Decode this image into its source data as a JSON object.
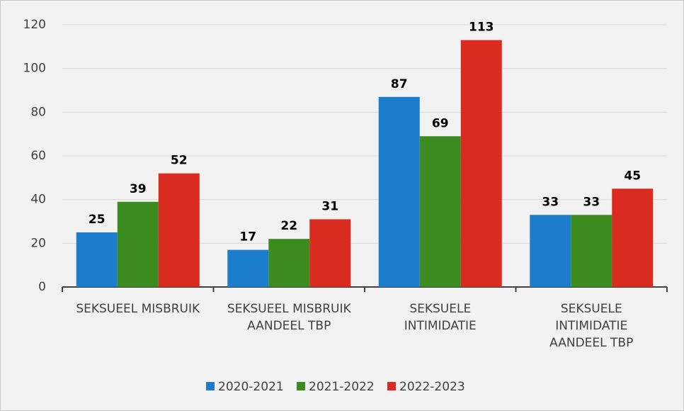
{
  "chart_data": {
    "type": "bar",
    "categories": [
      "SEKSUEEL MISBRUIK",
      "SEKSUEEL MISBRUIK\nAANDEEL TBP",
      "SEKSUELE\nINTIMIDATIE",
      "SEKSUELE\nINTIMIDATIE\nAANDEEL TBP"
    ],
    "series": [
      {
        "name": "2020-2021",
        "color": "#1c7dcc",
        "values": [
          25,
          17,
          87,
          33
        ]
      },
      {
        "name": "2021-2022",
        "color": "#3b8b1f",
        "values": [
          39,
          22,
          69,
          33
        ]
      },
      {
        "name": "2022-2023",
        "color": "#d92b1f",
        "values": [
          52,
          31,
          113,
          45
        ]
      }
    ],
    "ylim": [
      0,
      120
    ],
    "yticks": [
      0,
      20,
      40,
      60,
      80,
      100,
      120
    ],
    "grid": true,
    "legend": "bottom"
  }
}
